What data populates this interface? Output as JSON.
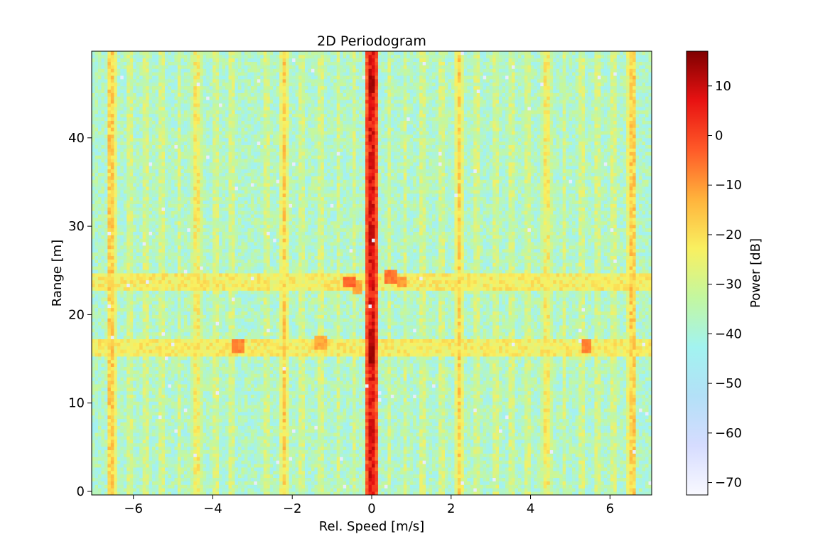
{
  "chart_data": {
    "type": "heatmap",
    "title": "2D Periodogram",
    "xlabel": "Rel. Speed [m/s]",
    "ylabel": "Range [m]",
    "xlim": [
      -7.05,
      7.05
    ],
    "ylim": [
      -0.4,
      49.8
    ],
    "xticks": [
      -6,
      -4,
      -2,
      0,
      2,
      4,
      6
    ],
    "xtick_labels": [
      "−6",
      "−4",
      "−2",
      "0",
      "2",
      "4",
      "6"
    ],
    "yticks": [
      0,
      10,
      20,
      30,
      40
    ],
    "ytick_labels": [
      "0",
      "10",
      "20",
      "30",
      "40"
    ],
    "colorbar": {
      "label": "Power [dB]",
      "range": [
        -72.5,
        17
      ],
      "ticks": [
        10,
        0,
        -10,
        -20,
        -30,
        -40,
        -50,
        -60,
        -70
      ],
      "tick_labels": [
        "10",
        "0",
        "−10",
        "−20",
        "−30",
        "−40",
        "−50",
        "−60",
        "−70"
      ],
      "colormap": [
        "#f9f9ff",
        "#d6dcff",
        "#b3e0f7",
        "#a2f3f0",
        "#c3f7a0",
        "#f9f060",
        "#ffb33c",
        "#ff5a28",
        "#e81212",
        "#7f0000"
      ]
    },
    "grid": false,
    "background_level_db": -38,
    "strong_columns": [
      {
        "speed": 0.0,
        "level_db": 8,
        "peaks": [
          {
            "range": 46,
            "level_db": 14
          },
          {
            "range": 29,
            "level_db": 12
          },
          {
            "range": 15.5,
            "level_db": 15
          },
          {
            "range": 17.5,
            "level_db": 12
          },
          {
            "range": 7,
            "level_db": 10
          },
          {
            "range": 37.5,
            "level_db": 10
          }
        ]
      },
      {
        "speed": -6.55,
        "level_db": -16
      },
      {
        "speed": 6.55,
        "level_db": -16
      },
      {
        "speed": -2.2,
        "level_db": -16
      },
      {
        "speed": 2.2,
        "level_db": -16
      },
      {
        "speed": -4.4,
        "level_db": -22
      },
      {
        "speed": 4.4,
        "level_db": -22
      }
    ],
    "faint_columns": [
      -6.1,
      -5.7,
      -5.3,
      -4.85,
      -3.9,
      -3.5,
      -2.65,
      -1.75,
      -1.3,
      -0.85,
      -0.45,
      0.45,
      0.85,
      1.3,
      1.75,
      2.65,
      3.1,
      3.5,
      3.9,
      4.85,
      5.3,
      5.7,
      6.1
    ],
    "horizontal_bands": [
      {
        "range": 23.8,
        "level_db": -22
      },
      {
        "range": 16.3,
        "level_db": -22
      }
    ],
    "hotspots": [
      {
        "speed": -3.35,
        "range": 16.5,
        "level_db": -8
      },
      {
        "speed": 5.4,
        "range": 16.5,
        "level_db": -8
      },
      {
        "speed": -1.3,
        "range": 16.8,
        "level_db": -12
      },
      {
        "speed": -0.55,
        "range": 23.8,
        "level_db": -4
      },
      {
        "speed": 0.5,
        "range": 24.3,
        "level_db": -6
      },
      {
        "speed": 0.75,
        "range": 23.8,
        "level_db": -10
      },
      {
        "speed": -0.35,
        "range": 23.2,
        "level_db": -12
      }
    ]
  }
}
